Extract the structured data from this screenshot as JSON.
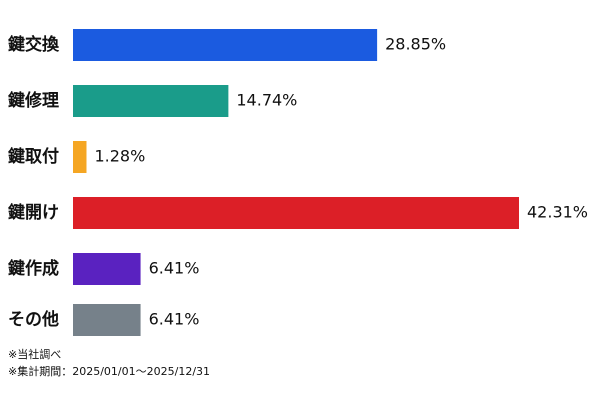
{
  "chart_data": {
    "type": "bar",
    "orientation": "horizontal",
    "categories": [
      "鍵交換",
      "鍵修理",
      "鍵取付",
      "鍵開け",
      "鍵作成",
      "その他"
    ],
    "values": [
      28.85,
      14.74,
      1.28,
      42.31,
      6.41,
      6.41
    ],
    "value_labels": [
      "28.85%",
      "14.74%",
      "1.28%",
      "42.31%",
      "6.41%",
      "6.41%"
    ],
    "colors": [
      "#1b5be0",
      "#1a9c8a",
      "#f5a623",
      "#dc1f27",
      "#5a22c0",
      "#76818a"
    ],
    "notes": [
      "※当社調べ",
      "※集計期間：2025/01/01～2025/12/31"
    ]
  }
}
